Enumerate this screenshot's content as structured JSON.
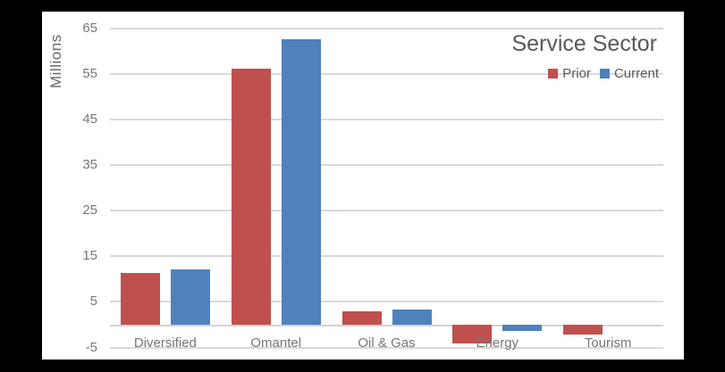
{
  "frame": {
    "background": "#000000",
    "chart_background": "#ffffff"
  },
  "chart_data": {
    "type": "bar",
    "title": "Service Sector",
    "y_axis_title": "Millions",
    "categories": [
      "Diversified",
      "Omantel",
      "Oil & Gas",
      "Energy",
      "Tourism"
    ],
    "series": [
      {
        "name": "Prior",
        "color": "#c0504d",
        "values": [
          11.3,
          56.2,
          2.9,
          -4.1,
          -2.1
        ]
      },
      {
        "name": "Current",
        "color": "#4f81bd",
        "values": [
          12.2,
          62.6,
          3.4,
          -1.3,
          0
        ]
      }
    ],
    "y_ticks": [
      65,
      55,
      45,
      35,
      25,
      15,
      5,
      -5
    ],
    "ylim": [
      -7.7,
      68.7
    ],
    "grid": true,
    "gridline_color": "#d9d9d9",
    "tick_label_color": "#767676",
    "title_color": "#595959",
    "legend_position": "top-right"
  }
}
